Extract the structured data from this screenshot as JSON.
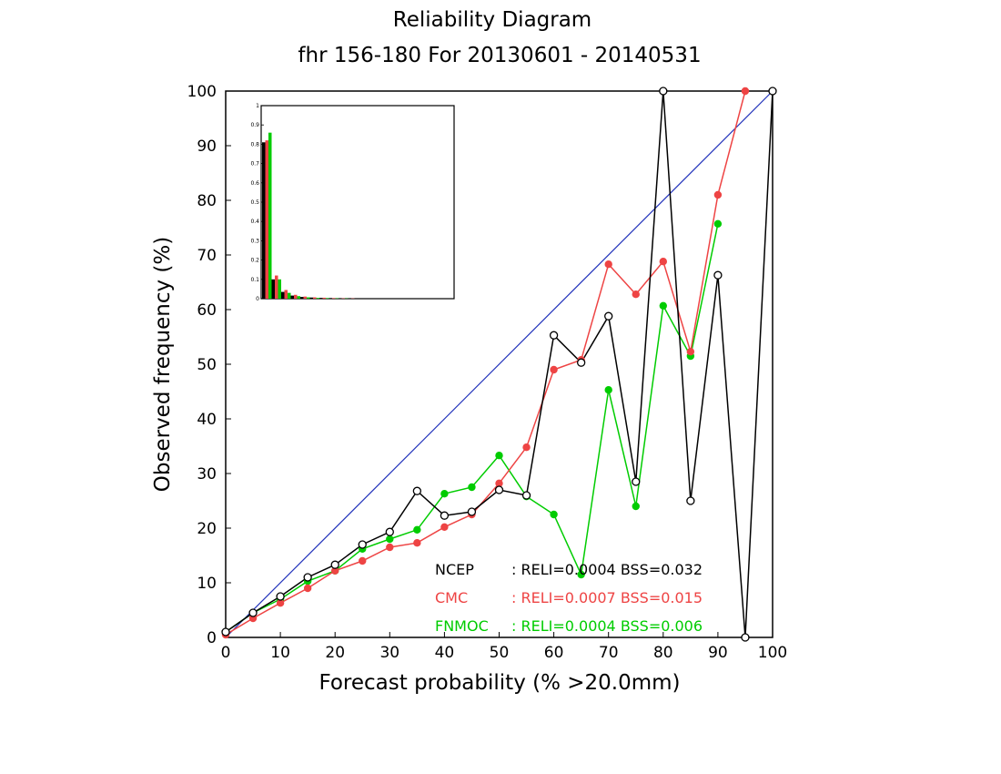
{
  "chart_data": {
    "type": "line",
    "title": "Reliability Diagram",
    "subtitle": "fhr 156-180 For 20130601 - 20140531",
    "xlabel": "Forecast probability (% >20.0mm)",
    "ylabel": "Observed frequency (%)",
    "xlim": [
      0,
      100
    ],
    "ylim": [
      0,
      100
    ],
    "xticks": [
      "0",
      "10",
      "20",
      "30",
      "40",
      "50",
      "60",
      "70",
      "80",
      "90",
      "100"
    ],
    "yticks": [
      "0",
      "10",
      "20",
      "30",
      "40",
      "50",
      "60",
      "70",
      "80",
      "90",
      "100"
    ],
    "diagonal_color": "#2233bb",
    "x": [
      0,
      5,
      10,
      15,
      20,
      25,
      30,
      35,
      40,
      45,
      50,
      55,
      60,
      65,
      70,
      75,
      80,
      85,
      90,
      95,
      100
    ],
    "series": [
      {
        "name": "NCEP",
        "color": "#000000",
        "marker": "open",
        "reli": "0.0004",
        "bss": "0.032",
        "values": [
          1,
          4.5,
          7.5,
          11,
          13.3,
          17,
          19.3,
          26.8,
          22.3,
          23,
          27,
          26,
          55.3,
          50.3,
          58.8,
          28.5,
          100,
          25,
          66.3,
          0,
          100
        ]
      },
      {
        "name": "CMC",
        "color": "#ee4444",
        "marker": "filled",
        "reli": "0.0007",
        "bss": "0.015",
        "values": [
          0.5,
          3.5,
          6.3,
          9,
          12.2,
          14,
          16.5,
          17.3,
          20.2,
          22.5,
          28.2,
          34.8,
          49,
          50.8,
          68.3,
          62.8,
          68.8,
          52.3,
          81,
          100,
          null
        ]
      },
      {
        "name": "FNMOC",
        "color": "#00cc00",
        "marker": "filled",
        "reli": "0.0004",
        "bss": "0.006",
        "values": [
          1,
          4.5,
          7,
          10.3,
          12.2,
          16.2,
          18,
          19.7,
          26.3,
          27.5,
          33.3,
          25.8,
          22.5,
          11.5,
          45.3,
          24,
          60.7,
          51.5,
          75.7,
          null,
          null
        ]
      }
    ],
    "legend": {
      "placement": "bottom-right",
      "rows": [
        {
          "name": "NCEP",
          "text": ": RELI=0.0004  BSS=0.032"
        },
        {
          "name": "CMC",
          "text": ": RELI=0.0007  BSS=0.015"
        },
        {
          "name": "FNMOC",
          "text": ": RELI=0.0004  BSS=0.006"
        }
      ]
    },
    "inset_histogram": {
      "type": "bar",
      "placement": "top-left",
      "ylim": [
        0,
        1
      ],
      "yticks": [
        "0",
        "0.1",
        "0.2",
        "0.3",
        "0.4",
        "0.5",
        "0.6",
        "0.7",
        "0.8",
        "0.9",
        "1"
      ],
      "bins": 21,
      "series": [
        {
          "name": "NCEP",
          "color": "#000000",
          "values": [
            0.81,
            0.1,
            0.035,
            0.016,
            0.009,
            0.006,
            0.004,
            0.003,
            0.002,
            0.0015,
            0.001,
            0.001,
            0.0008,
            0.0006,
            0.0005,
            0.0004,
            0.0003,
            0.0003,
            0.0002,
            0.0001,
            0.0001
          ]
        },
        {
          "name": "CMC",
          "color": "#ee4444",
          "values": [
            0.82,
            0.12,
            0.045,
            0.02,
            0.011,
            0.007,
            0.005,
            0.003,
            0.002,
            0.0015,
            0.001,
            0.001,
            0.0008,
            0.0006,
            0.0005,
            0.0004,
            0.0003,
            0.0003,
            0.0002,
            0.0001,
            0.0001
          ]
        },
        {
          "name": "FNMOC",
          "color": "#00cc00",
          "values": [
            0.86,
            0.1,
            0.03,
            0.013,
            0.007,
            0.004,
            0.003,
            0.002,
            0.0015,
            0.001,
            0.001,
            0.0008,
            0.0006,
            0.0005,
            0.0004,
            0.0003,
            0.0003,
            0.0002,
            0.0001,
            0.0001,
            0.0001
          ]
        }
      ]
    }
  }
}
